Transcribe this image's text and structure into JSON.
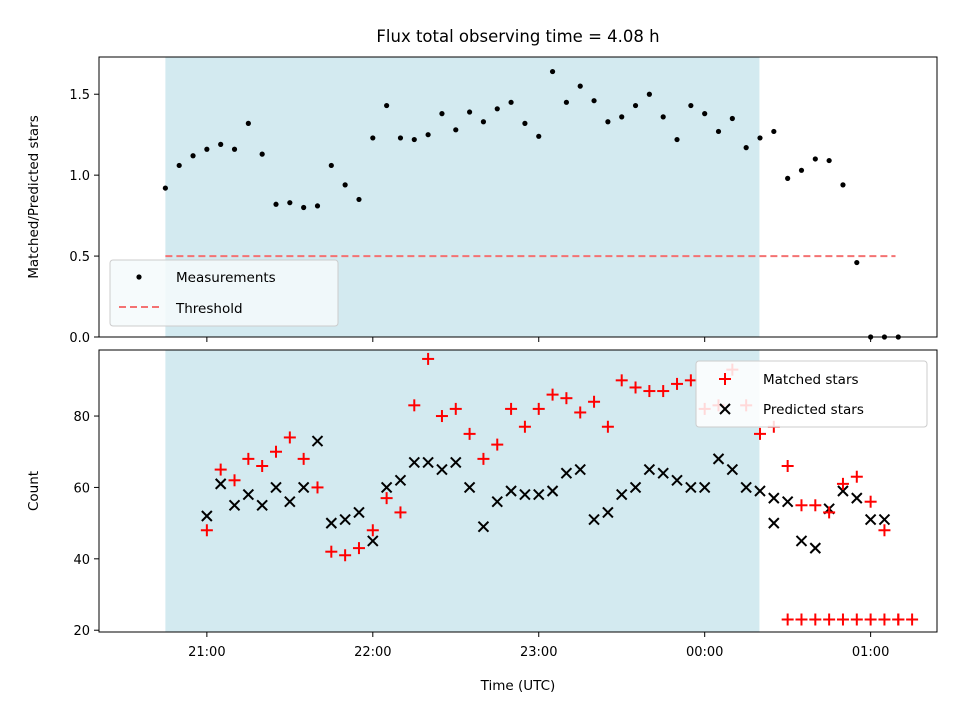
{
  "chart_data": {
    "type": "scatter",
    "title": "Flux total observing time = 4.08 h",
    "xlabel": "Time (UTC)",
    "x_unit": "hours",
    "x_tick_values": [
      21,
      22,
      23,
      24,
      25
    ],
    "x_tick_labels": [
      "21:00",
      "22:00",
      "23:00",
      "00:00",
      "01:00"
    ],
    "xlim": [
      20.35,
      25.4
    ],
    "shaded_interval": [
      20.75,
      24.33
    ],
    "shade_color": "#d3eaf0",
    "panels": [
      {
        "ylabel": "Matched/Predicted stars",
        "ylim": [
          0,
          1.73
        ],
        "y_ticks": [
          0.0,
          0.5,
          1.0,
          1.5
        ],
        "y_tick_labels": [
          "0.0",
          "0.5",
          "1.0",
          "1.5"
        ],
        "legend_position": "lower-left",
        "threshold": {
          "name": "Threshold",
          "value": 0.5,
          "x_range": [
            20.75,
            25.15
          ],
          "color": "#f47272"
        },
        "series": [
          {
            "name": "Measurements",
            "marker": "dot",
            "color": "#000000",
            "x": [
              20.75,
              20.8333,
              20.9167,
              21.0,
              21.0833,
              21.1667,
              21.25,
              21.3333,
              21.4167,
              21.5,
              21.5833,
              21.6667,
              21.75,
              21.8333,
              21.9167,
              22.0,
              22.0833,
              22.1667,
              22.25,
              22.3333,
              22.4167,
              22.5,
              22.5833,
              22.6667,
              22.75,
              22.8333,
              22.9167,
              23.0,
              23.0833,
              23.1667,
              23.25,
              23.3333,
              23.4167,
              23.5,
              23.5833,
              23.6667,
              23.75,
              23.8333,
              23.9167,
              24.0,
              24.0833,
              24.1667,
              24.25,
              24.3333,
              24.4167,
              24.5,
              24.5833,
              24.6667,
              24.75,
              24.8333,
              24.9167,
              25.0,
              25.0833,
              25.1667
            ],
            "y": [
              0.92,
              1.06,
              1.12,
              1.16,
              1.19,
              1.16,
              1.32,
              1.13,
              0.82,
              0.83,
              0.8,
              0.81,
              1.06,
              0.94,
              0.85,
              1.23,
              1.43,
              1.23,
              1.22,
              1.25,
              1.38,
              1.28,
              1.39,
              1.33,
              1.41,
              1.45,
              1.32,
              1.24,
              1.64,
              1.45,
              1.55,
              1.46,
              1.33,
              1.36,
              1.43,
              1.5,
              1.36,
              1.22,
              1.43,
              1.38,
              1.27,
              1.35,
              1.17,
              1.23,
              1.27,
              0.98,
              1.03,
              1.1,
              1.09,
              0.94,
              0.46,
              0.0,
              0.0,
              0.0
            ]
          }
        ]
      },
      {
        "ylabel": "Count",
        "ylim": [
          19.5,
          98.5
        ],
        "y_ticks": [
          20,
          40,
          60,
          80
        ],
        "y_tick_labels": [
          "20",
          "40",
          "60",
          "80"
        ],
        "legend_position": "upper-right",
        "series": [
          {
            "name": "Matched stars",
            "marker": "plus",
            "color": "#ff0000",
            "x": [
              21.0,
              21.0833,
              21.1667,
              21.25,
              21.3333,
              21.4167,
              21.5,
              21.5833,
              21.6667,
              21.75,
              21.8333,
              21.9167,
              22.0,
              22.0833,
              22.1667,
              22.25,
              22.3333,
              22.4167,
              22.5,
              22.5833,
              22.6667,
              22.75,
              22.8333,
              22.9167,
              23.0,
              23.0833,
              23.1667,
              23.25,
              23.3333,
              23.4167,
              23.5,
              23.5833,
              23.6667,
              23.75,
              23.8333,
              23.9167,
              24.0,
              24.0833,
              24.1667,
              24.25,
              24.3333,
              24.4167,
              24.5,
              24.5833,
              24.6667,
              24.75,
              24.8333,
              24.9167,
              25.0,
              25.0833,
              25.1667
            ],
            "y": [
              48,
              65,
              62,
              68,
              66,
              70,
              74,
              68,
              60,
              42,
              41,
              43,
              48,
              57,
              53,
              83,
              96,
              80,
              82,
              75,
              68,
              72,
              82,
              77,
              82,
              86,
              85,
              81,
              84,
              77,
              90,
              88,
              87,
              87,
              89,
              90,
              82,
              83,
              93,
              83,
              75,
              77,
              66,
              55,
              55,
              53,
              61,
              63,
              56,
              48,
              23
            ]
          },
          {
            "name": "Predicted stars",
            "marker": "x",
            "color": "#000000",
            "x": [
              21.0,
              21.0833,
              21.1667,
              21.25,
              21.3333,
              21.4167,
              21.5,
              21.5833,
              21.6667,
              21.75,
              21.8333,
              21.9167,
              22.0,
              22.0833,
              22.1667,
              22.25,
              22.3333,
              22.4167,
              22.5,
              22.5833,
              22.6667,
              22.75,
              22.8333,
              22.9167,
              23.0,
              23.0833,
              23.1667,
              23.25,
              23.3333,
              23.4167,
              23.5,
              23.5833,
              23.6667,
              23.75,
              23.8333,
              23.9167,
              24.0,
              24.0833,
              24.1667,
              24.25,
              24.3333,
              24.4167,
              24.5,
              24.5833,
              24.6667,
              24.75,
              24.8333,
              24.9167,
              25.0,
              25.0833
            ],
            "y": [
              52,
              61,
              55,
              58,
              55,
              60,
              56,
              60,
              73,
              50,
              51,
              53,
              45,
              60,
              62,
              67,
              67,
              65,
              67,
              60,
              49,
              56,
              59,
              58,
              58,
              59,
              64,
              65,
              51,
              53,
              58,
              60,
              65,
              64,
              62,
              60,
              60,
              68,
              65,
              60,
              59,
              57,
              56,
              45,
              43,
              54,
              59,
              57,
              51,
              51
            ]
          }
        ],
        "tail_markers": {
          "name": "Matched stars",
          "marker": "plus",
          "color": "#ff0000",
          "x": [
            24.5,
            24.5833,
            24.6667,
            24.75,
            24.8333,
            24.9167,
            25.0,
            25.0833,
            25.1667,
            25.25
          ],
          "y": [
            23,
            23,
            23,
            23,
            23,
            23,
            23,
            23,
            23,
            23
          ]
        },
        "tail_predicted": {
          "name": "Predicted stars",
          "marker": "x",
          "color": "#000000",
          "x": [
            24.4167
          ],
          "y": [
            50
          ]
        }
      }
    ]
  }
}
